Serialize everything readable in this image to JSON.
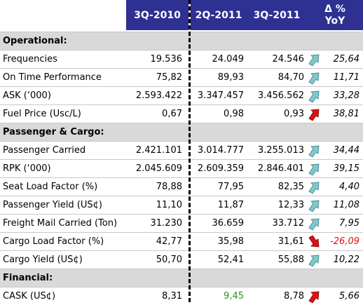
{
  "columns": {
    "c1": "3Q-2010",
    "c2": "2Q-2011",
    "c3": "3Q-2011",
    "c4_line1": "Δ %",
    "c4_line2": "YoY"
  },
  "sections": [
    {
      "title": "Operational:",
      "rows": [
        {
          "label": "Frequencies",
          "v1": "19.536",
          "v2": "24.049",
          "v3": "24.546",
          "trend": "up",
          "yoy": "25,64"
        },
        {
          "label": "On Time Performance",
          "v1": "75,82",
          "v2": "89,93",
          "v3": "84,70",
          "trend": "up",
          "yoy": "11,71"
        },
        {
          "label": "ASK (‘000)",
          "v1": "2.593.422",
          "v2": "3.347.457",
          "v3": "3.456.562",
          "trend": "up",
          "yoy": "33,28"
        },
        {
          "label": "Fuel Price (Usc/L)",
          "v1": "0,67",
          "v2": "0,98",
          "v3": "0,93",
          "trend": "up-bad",
          "yoy": "38,81"
        }
      ]
    },
    {
      "title": "Passenger & Cargo:",
      "rows": [
        {
          "label": "Passenger Carried",
          "v1": "2.421.101",
          "v2": "3.014.777",
          "v3": "3.255.013",
          "trend": "up",
          "yoy": "34,44"
        },
        {
          "label": "RPK (‘000)",
          "v1": "2.045.609",
          "v2": "2.609.359",
          "v3": "2.846.401",
          "trend": "up",
          "yoy": "39,15"
        },
        {
          "label": "Seat Load Factor (%)",
          "v1": "78,88",
          "v2": "77,95",
          "v3": "82,35",
          "trend": "up",
          "yoy": "4,40"
        },
        {
          "label": "Passenger Yield (US¢)",
          "v1": "11,10",
          "v2": "11,87",
          "v3": "12,33",
          "trend": "up",
          "yoy": "11,08"
        },
        {
          "label": "Freight Mail Carried (Ton)",
          "v1": "31.230",
          "v2": "36.659",
          "v3": "33.712",
          "trend": "up",
          "yoy": "7,95"
        },
        {
          "label": "Cargo Load Factor (%)",
          "v1": "42,77",
          "v2": "35,98",
          "v3": "31,61",
          "trend": "down-bad",
          "yoy": "-26,09"
        },
        {
          "label": "Cargo Yield (US¢)",
          "v1": "50,70",
          "v2": "52,41",
          "v3": "55,88",
          "trend": "up",
          "yoy": "10,22"
        }
      ]
    },
    {
      "title": "Financial:",
      "rows": [
        {
          "label": "CASK (US¢)",
          "v1": "8,31",
          "v2": "9,45",
          "v3": "8,78",
          "trend": "up-bad",
          "yoy": "5,66",
          "v2_color": "#3a8a2a"
        }
      ]
    }
  ],
  "colors": {
    "header_bg": "#2e3092",
    "section_bg": "#d9d9d9",
    "good_arrow": "#7fc8cc",
    "bad_arrow": "#e01010",
    "negative_text": "#e01010"
  }
}
